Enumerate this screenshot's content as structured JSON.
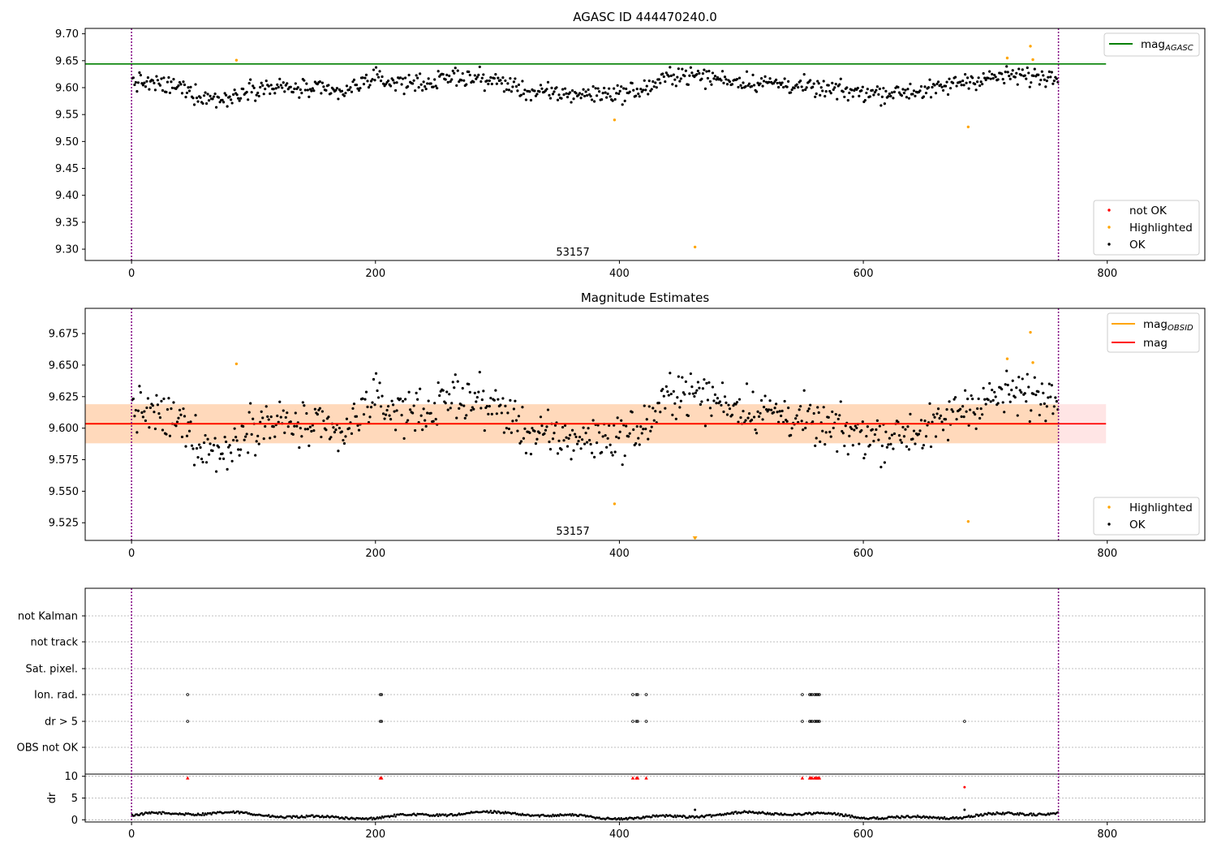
{
  "chart_data": [
    {
      "type": "scatter",
      "title": "AGASC ID 444470240.0",
      "xlim": [
        -38,
        880
      ],
      "ylim": [
        9.279,
        9.71
      ],
      "xticks": [
        0,
        200,
        400,
        600,
        800
      ],
      "yticks": [
        9.3,
        9.35,
        9.4,
        9.45,
        9.5,
        9.55,
        9.6,
        9.65,
        9.7
      ],
      "ytick_labels": [
        "9.30",
        "9.35",
        "9.40",
        "9.45",
        "9.50",
        "9.55",
        "9.60",
        "9.65",
        "9.70"
      ],
      "vlines": [
        0,
        760
      ],
      "annotation": {
        "text": "53157",
        "x": 380,
        "y": 9.288
      },
      "hline": {
        "name": "mag_AGASC",
        "y": 9.644,
        "x": [
          -38,
          799
        ],
        "color": "#008000"
      },
      "series": [
        {
          "name": "not OK",
          "color": "#ff0000",
          "values": []
        },
        {
          "name": "Highlighted",
          "color": "#ffa500",
          "points": [
            [
              86,
              9.651
            ],
            [
              396,
              9.54
            ],
            [
              462,
              9.304
            ],
            [
              686,
              9.527
            ],
            [
              718,
              9.655
            ],
            [
              737,
              9.677
            ],
            [
              739,
              9.652
            ]
          ]
        },
        {
          "name": "OK",
          "color": "#000000",
          "n_points": 760,
          "baseline": 9.6
        }
      ],
      "legend": {
        "hline_label": "mag",
        "hline_sub": "AGASC",
        "not_ok": "not OK",
        "highlighted": "Highlighted",
        "ok": "OK",
        "hline_loc": "upper right",
        "points_loc": "lower right"
      }
    },
    {
      "type": "scatter",
      "title": "Magnitude Estimates",
      "xlim": [
        -38,
        880
      ],
      "ylim": [
        9.511,
        9.695
      ],
      "xticks": [
        0,
        200,
        400,
        600,
        800
      ],
      "yticks": [
        9.525,
        9.55,
        9.575,
        9.6,
        9.625,
        9.65,
        9.675
      ],
      "ytick_labels": [
        "9.525",
        "9.550",
        "9.575",
        "9.600",
        "9.625",
        "9.650",
        "9.675"
      ],
      "vlines": [
        0,
        760
      ],
      "annotation": {
        "text": "53157",
        "x": 380,
        "y": 9.5155
      },
      "mag": {
        "y": 9.6035,
        "band": [
          9.588,
          9.619
        ],
        "color": "#ff0000"
      },
      "mag_obsid": {
        "y": 9.6035,
        "band": [
          9.588,
          9.619
        ],
        "color": "#ffa500"
      },
      "series": [
        {
          "name": "Highlighted",
          "color": "#ffa500",
          "points": [
            [
              86,
              9.651
            ],
            [
              396,
              9.54
            ],
            [
              462,
              9.513
            ],
            [
              686,
              9.526
            ],
            [
              718,
              9.655
            ],
            [
              737,
              9.676
            ],
            [
              739,
              9.652
            ]
          ]
        },
        {
          "name": "OK",
          "color": "#000000",
          "n_points": 760,
          "baseline": 9.604
        }
      ],
      "legend": {
        "obsid_label": "mag",
        "obsid_sub": "OBSID",
        "mag_label": "mag",
        "highlighted": "Highlighted",
        "ok": "OK"
      }
    },
    {
      "type": "scatter",
      "xlim": [
        -38,
        880
      ],
      "xticks": [
        0,
        200,
        400,
        600,
        800
      ],
      "vlines": [
        0,
        760
      ],
      "flag_rows": [
        "not Kalman",
        "not track",
        "Sat. pixel.",
        "Ion. rad.",
        "dr > 5",
        "OBS not OK"
      ],
      "flags": {
        "Ion. rad.": [
          46,
          204,
          205,
          411,
          414,
          415,
          422,
          550,
          556,
          557,
          558,
          560,
          561,
          562,
          563,
          564
        ],
        "dr > 5": [
          46,
          204,
          205,
          411,
          414,
          415,
          422,
          550,
          556,
          557,
          558,
          560,
          561,
          562,
          563,
          564,
          683
        ]
      },
      "dr": {
        "ylabel": "dr",
        "ylim": [
          -0.5,
          10.5
        ],
        "yticks": [
          0,
          5,
          10
        ],
        "ytick_labels": [
          "0",
          "5",
          "10"
        ],
        "clipped_points": [
          46,
          204,
          205,
          411,
          414,
          415,
          422,
          550,
          556,
          557,
          558,
          560,
          561,
          562,
          563,
          564
        ],
        "outliers": [
          [
            683,
            7.5
          ],
          [
            683,
            2.3
          ],
          [
            462,
            2.3
          ]
        ],
        "typical": 1.0,
        "n_points": 760
      }
    }
  ]
}
